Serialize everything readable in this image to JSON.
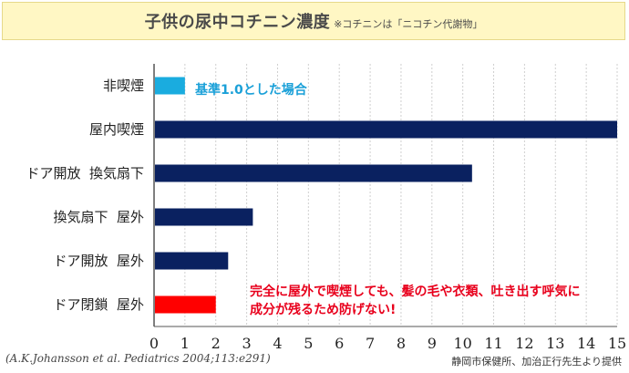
{
  "header": {
    "title": "子供の尿中コチニン濃度",
    "subtitle": "※コチニンは「ニコチン代謝物」"
  },
  "chart_data": {
    "type": "bar",
    "orientation": "horizontal",
    "categories": [
      "非喫煙",
      "屋内喫煙",
      "ドア開放  換気扇下",
      "換気扇下  屋外",
      "ドア開放  屋外",
      "ドア閉鎖  屋外"
    ],
    "values": [
      1.0,
      15.0,
      10.3,
      3.2,
      2.4,
      2.0
    ],
    "bar_colors": [
      "#1aacdf",
      "#0a2160",
      "#0a2160",
      "#0a2160",
      "#0a2160",
      "#ff0000"
    ],
    "xlim": [
      0,
      15
    ],
    "xticks": [
      "0",
      "1",
      "2",
      "3",
      "4",
      "5",
      "6",
      "7",
      "8",
      "9",
      "10",
      "11",
      "12",
      "13",
      "14",
      "15"
    ],
    "grid": true,
    "annotations": {
      "baseline": "基準1.0とした場合",
      "warning_line1": "完全に屋外で喫煙しても、髪の毛や衣類、吐き出す呼気に",
      "warning_line2": "成分が残るため防げない!"
    }
  },
  "footer": {
    "citation": "(A.K.Johansson et al. Pediatrics 2004;113:e291)",
    "credit": "静岡市保健所、加治正行先生より提供"
  },
  "colors": {
    "title_bg": "#fff7c4",
    "bar_main": "#0a2160",
    "bar_baseline": "#1aacdf",
    "bar_highlight": "#ff0000",
    "grid": "#cfcfcf"
  }
}
